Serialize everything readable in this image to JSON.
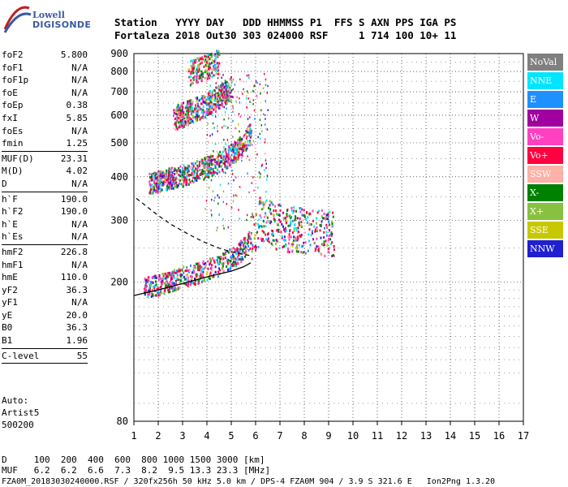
{
  "logo": {
    "line1": "Lowell",
    "line2": "DIGISONDE"
  },
  "header": {
    "line1": "Station   YYYY DAY   DDD HHMMSS P1  FFS S AXN PPS IGA PS",
    "line2": "Fortaleza 2018 Out30 303 024000 RSF     1 714 100 10+ 11"
  },
  "params": [
    {
      "k": "foF2",
      "v": "5.800"
    },
    {
      "k": "foF1",
      "v": "N/A"
    },
    {
      "k": "foF1p",
      "v": "N/A"
    },
    {
      "k": "foE",
      "v": "N/A"
    },
    {
      "k": "foEp",
      "v": "0.38"
    },
    {
      "k": "fxI",
      "v": "5.85"
    },
    {
      "k": "foEs",
      "v": "N/A"
    },
    {
      "k": "fmin",
      "v": "1.25"
    },
    {
      "sep": true
    },
    {
      "k": "MUF(D)",
      "v": "23.31"
    },
    {
      "k": "M(D)",
      "v": "4.02"
    },
    {
      "k": "D",
      "v": "N/A"
    },
    {
      "sep": true
    },
    {
      "k": "h`F",
      "v": "190.0"
    },
    {
      "k": "h`F2",
      "v": "190.0"
    },
    {
      "k": "h`E",
      "v": "N/A"
    },
    {
      "k": "h`Es",
      "v": "N/A"
    },
    {
      "sep": true
    },
    {
      "k": "hmF2",
      "v": "226.8"
    },
    {
      "k": "hmF1",
      "v": "N/A"
    },
    {
      "k": "hmE",
      "v": "110.0"
    },
    {
      "k": "yF2",
      "v": "36.3"
    },
    {
      "k": "yF1",
      "v": "N/A"
    },
    {
      "k": "yE",
      "v": "20.0"
    },
    {
      "k": "B0",
      "v": "36.3"
    },
    {
      "k": "B1",
      "v": "1.96"
    },
    {
      "sep": true
    },
    {
      "k": "C-level",
      "v": "55"
    },
    {
      "sep": true
    }
  ],
  "auto": {
    "line1": "Auto:",
    "line2": "Artist5",
    "line3": "500200"
  },
  "dtable": {
    "row1": "D     100  200  400  600  800 1000 1500 3000 [km]",
    "row2": "MUF   6.2  6.2  6.6  7.3  8.2  9.5 13.3 23.3 [MHz]"
  },
  "footer": "FZA0M_20183030240000.RSF / 320fx256h 50 kHz 5.0 km / DPS-4 FZA0M 904 / 3.9 S 321.6 E   Ion2Png 1.3.20",
  "legend": [
    {
      "label": "NoVal",
      "color": "#808080"
    },
    {
      "label": "NNE",
      "color": "#00e5ff"
    },
    {
      "label": "E",
      "color": "#1e90ff"
    },
    {
      "label": "W",
      "color": "#a000a0"
    },
    {
      "label": "Vo-",
      "color": "#ff40c0"
    },
    {
      "label": "Vo+",
      "color": "#ff0040"
    },
    {
      "label": "SSW",
      "color": "#ffb0a8"
    },
    {
      "label": "X-",
      "color": "#008000"
    },
    {
      "label": "X+",
      "color": "#88c040"
    },
    {
      "label": "SSE",
      "color": "#c8c800"
    },
    {
      "label": "NNW",
      "color": "#2020d0"
    }
  ],
  "chart_data": {
    "type": "scatter",
    "xlabel": "",
    "ylabel": "",
    "xlim": [
      1,
      17
    ],
    "ylim": [
      80,
      900
    ],
    "x_ticks": [
      "1",
      "2",
      "3",
      "4",
      "5",
      "6",
      "7",
      "8",
      "9",
      "10",
      "11",
      "12",
      "13",
      "14",
      "15",
      "16",
      "17"
    ],
    "y_ticks": [
      {
        "value": 80,
        "label": "80"
      },
      {
        "value": 200,
        "label": "200"
      },
      {
        "value": 300,
        "label": "300"
      },
      {
        "value": 400,
        "label": "400"
      },
      {
        "value": 500,
        "label": "500"
      },
      {
        "value": 600,
        "label": "600"
      },
      {
        "value": 700,
        "label": "700"
      },
      {
        "value": 800,
        "label": "800"
      },
      {
        "value": 900,
        "label": "900"
      }
    ],
    "y_scale": "log",
    "grid": "dotted",
    "traces": [
      {
        "name": "F2 trace",
        "points": [
          [
            1.4,
            193
          ],
          [
            2.0,
            198
          ],
          [
            2.5,
            203
          ],
          [
            3.0,
            208
          ],
          [
            3.5,
            213
          ],
          [
            4.0,
            218
          ],
          [
            4.5,
            225
          ],
          [
            5.0,
            235
          ],
          [
            5.5,
            250
          ],
          [
            5.8,
            270
          ],
          [
            6.0,
            290
          ],
          [
            6.2,
            305
          ],
          [
            6.5,
            300
          ],
          [
            6.8,
            290
          ],
          [
            7.2,
            285
          ],
          [
            7.8,
            282
          ],
          [
            8.4,
            280
          ],
          [
            9.2,
            278
          ]
        ]
      },
      {
        "name": "2F2 trace",
        "points": [
          [
            1.6,
            385
          ],
          [
            2.0,
            390
          ],
          [
            2.5,
            398
          ],
          [
            3.0,
            405
          ],
          [
            3.5,
            415
          ],
          [
            4.0,
            428
          ],
          [
            4.5,
            445
          ],
          [
            5.0,
            465
          ],
          [
            5.5,
            500
          ],
          [
            5.8,
            540
          ]
        ]
      },
      {
        "name": "3F2 trace",
        "points": [
          [
            2.6,
            590
          ],
          [
            3.0,
            605
          ],
          [
            3.5,
            625
          ],
          [
            4.0,
            650
          ],
          [
            4.5,
            680
          ],
          [
            5.0,
            720
          ]
        ]
      },
      {
        "name": "4F2 trace",
        "points": [
          [
            3.2,
            790
          ],
          [
            3.5,
            810
          ],
          [
            4.0,
            830
          ],
          [
            4.5,
            860
          ]
        ]
      }
    ],
    "profile_solid": [
      [
        1.0,
        183
      ],
      [
        2.0,
        190
      ],
      [
        3.0,
        198
      ],
      [
        4.0,
        207
      ],
      [
        5.0,
        215
      ],
      [
        5.5,
        221
      ],
      [
        5.8,
        227
      ]
    ],
    "profile_dashed": [
      [
        1.1,
        347
      ],
      [
        1.5,
        330
      ],
      [
        2.0,
        310
      ],
      [
        2.5,
        293
      ],
      [
        3.0,
        280
      ],
      [
        3.5,
        268
      ],
      [
        4.0,
        258
      ],
      [
        4.5,
        250
      ],
      [
        5.0,
        244
      ],
      [
        5.5,
        240
      ],
      [
        5.8,
        238
      ]
    ]
  }
}
